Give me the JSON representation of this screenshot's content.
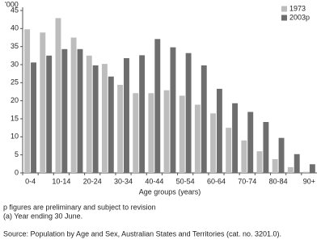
{
  "chart_data": {
    "type": "bar",
    "y_label": "'000",
    "x_label": "Age groups (years)",
    "categories": [
      "0-4",
      null,
      "10-14",
      null,
      "20-24",
      null,
      "30-34",
      null,
      "40-44",
      null,
      "50-54",
      null,
      "60-64",
      null,
      "70-74",
      null,
      "80-84",
      null,
      "90+"
    ],
    "series": [
      {
        "name": "1973",
        "color": "#bdbdbd",
        "values": [
          39.8,
          38.9,
          42.9,
          37.5,
          32.5,
          30.2,
          24.4,
          22.1,
          22.1,
          22.9,
          21.4,
          18.9,
          16.5,
          12.5,
          9.0,
          6.0,
          3.8,
          1.6,
          0.3
        ]
      },
      {
        "name": "2003p",
        "color": "#6e6e6e",
        "values": [
          30.6,
          32.5,
          34.3,
          34.3,
          29.8,
          26.7,
          31.8,
          32.6,
          37.1,
          34.8,
          33.2,
          29.8,
          23.3,
          19.3,
          16.9,
          14.1,
          9.7,
          5.2,
          2.4
        ]
      }
    ],
    "ylim": [
      0,
      45
    ],
    "yticks": [
      0,
      5,
      10,
      15,
      20,
      25,
      30,
      35,
      40,
      45
    ],
    "legend": "top-right",
    "notes": [
      "p figures are preliminary and subject to revision",
      "(a) Year ending 30 June."
    ],
    "source": "Source: Population by Age and Sex, Australian States and Territories (cat. no. 3201.0)."
  }
}
